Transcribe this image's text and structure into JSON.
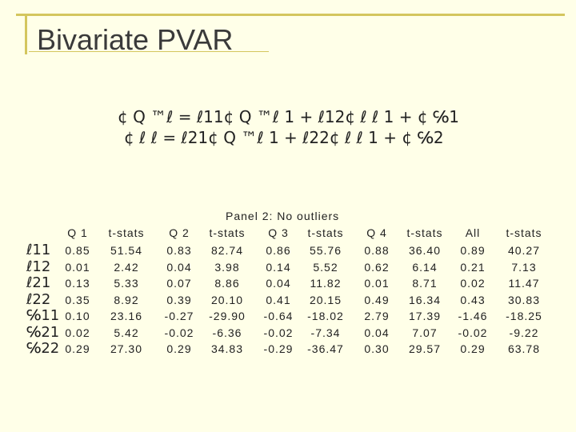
{
  "slide": {
    "title": "Bivariate PVAR",
    "equations": [
      "¢ Q ™ℓ = ℓ11¢ Q ™ℓ 1 + ℓ12¢ ℓ ℓ 1 + ¢ ℅1",
      "¢ ℓ ℓ = ℓ21¢ Q ™ℓ 1 + ℓ22¢ ℓ ℓ 1 + ¢ ℅2"
    ],
    "panel_title": "Panel 2: No outliers",
    "table": {
      "columns": [
        "Q 1",
        "t-stats",
        "Q 2",
        "t-stats",
        "Q 3",
        "t-stats",
        "Q 4",
        "t-stats",
        "All",
        "t-stats"
      ],
      "row_labels": [
        "ℓ11",
        "ℓ12",
        "ℓ21",
        "ℓ22",
        "℅11",
        "℅21",
        "℅22"
      ],
      "rows": [
        [
          "0.85",
          "51.54",
          "0.83",
          "82.74",
          "0.86",
          "55.76",
          "0.88",
          "36.40",
          "0.89",
          "40.27"
        ],
        [
          "0.01",
          "2.42",
          "0.04",
          "3.98",
          "0.14",
          "5.52",
          "0.62",
          "6.14",
          "0.21",
          "7.13"
        ],
        [
          "0.13",
          "5.33",
          "0.07",
          "8.86",
          "0.04",
          "11.82",
          "0.01",
          "8.71",
          "0.02",
          "11.47"
        ],
        [
          "0.35",
          "8.92",
          "0.39",
          "20.10",
          "0.41",
          "20.15",
          "0.49",
          "16.34",
          "0.43",
          "30.83"
        ],
        [
          "0.10",
          "23.16",
          "-0.27",
          "-29.90",
          "-0.64",
          "-18.02",
          "2.79",
          "17.39",
          "-1.46",
          "-18.25"
        ],
        [
          "0.02",
          "5.42",
          "-0.02",
          "-6.36",
          "-0.02",
          "-7.34",
          "0.04",
          "7.07",
          "-0.02",
          "-9.22"
        ],
        [
          "0.29",
          "27.30",
          "0.29",
          "34.83",
          "-0.29",
          "-36.47",
          "0.30",
          "29.57",
          "0.29",
          "63.78"
        ]
      ]
    }
  }
}
